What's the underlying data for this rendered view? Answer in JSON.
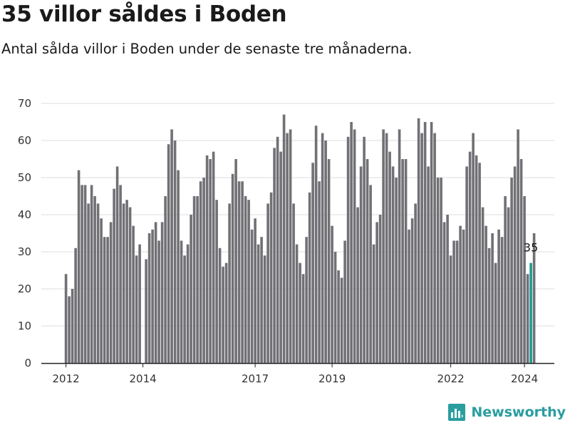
{
  "title": "35 villor såldes i Boden",
  "subtitle": "Antal sålda villor i Boden under de senaste tre månaderna.",
  "brand": "Newsworthy",
  "colors": {
    "bar": "#707075",
    "highlight": "#1f9b94",
    "grid": "#dddddd",
    "axis": "#222222",
    "brand": "#2a9d9f"
  },
  "chart_data": {
    "type": "bar",
    "title": "35 villor såldes i Boden",
    "subtitle": "Antal sålda villor i Boden under de senaste tre månaderna.",
    "xlabel": "",
    "ylabel": "",
    "ylim": [
      0,
      70
    ],
    "yticks": [
      0,
      10,
      20,
      30,
      40,
      50,
      60,
      70
    ],
    "grid": true,
    "xticks": [
      {
        "label": "2012",
        "index": 0
      },
      {
        "label": "2014",
        "index": 24
      },
      {
        "label": "2017",
        "index": 59
      },
      {
        "label": "2019",
        "index": 83
      },
      {
        "label": "2022",
        "index": 120
      },
      {
        "label": "2024",
        "index": 143
      }
    ],
    "highlight": {
      "index": 145,
      "label": "35"
    },
    "values": [
      24,
      18,
      20,
      31,
      52,
      48,
      48,
      43,
      48,
      45,
      43,
      39,
      34,
      34,
      38,
      47,
      53,
      48,
      43,
      44,
      42,
      37,
      29,
      32,
      null,
      28,
      35,
      36,
      38,
      33,
      38,
      45,
      59,
      63,
      60,
      52,
      33,
      29,
      32,
      40,
      45,
      45,
      49,
      50,
      56,
      55,
      57,
      44,
      31,
      26,
      27,
      43,
      51,
      55,
      49,
      49,
      45,
      44,
      36,
      39,
      32,
      34,
      29,
      43,
      46,
      58,
      61,
      57,
      67,
      62,
      63,
      43,
      32,
      27,
      24,
      34,
      46,
      54,
      64,
      49,
      62,
      60,
      55,
      37,
      30,
      25,
      23,
      33,
      61,
      65,
      63,
      42,
      53,
      61,
      55,
      48,
      32,
      38,
      40,
      63,
      62,
      57,
      53,
      50,
      63,
      55,
      55,
      36,
      39,
      43,
      66,
      62,
      65,
      53,
      65,
      62,
      50,
      50,
      38,
      40,
      29,
      33,
      33,
      37,
      36,
      53,
      57,
      62,
      56,
      54,
      42,
      37,
      31,
      35,
      27,
      36,
      34,
      45,
      42,
      50,
      53,
      63,
      55,
      45,
      24,
      27,
      35
    ]
  }
}
